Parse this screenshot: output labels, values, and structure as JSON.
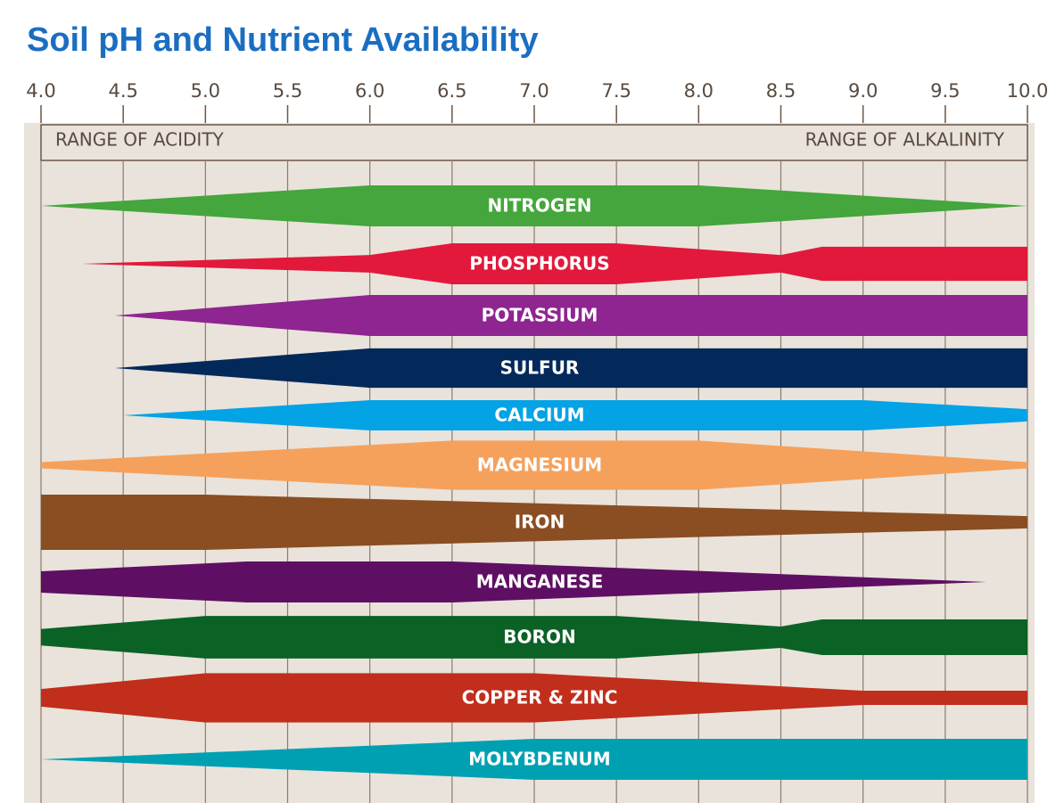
{
  "chart_data": {
    "type": "band",
    "title": "Soil pH and Nutrient Availability",
    "acid_label": "RANGE OF ACIDITY",
    "alkaline_label": "RANGE OF ALKALINITY",
    "xlim": [
      4,
      10
    ],
    "xticks": [
      {
        "value": 4,
        "label": "4.0"
      },
      {
        "value": 4.5,
        "label": "4.5"
      },
      {
        "value": 5,
        "label": "5.0"
      },
      {
        "value": 5.5,
        "label": "5.5"
      },
      {
        "value": 6,
        "label": "6.0"
      },
      {
        "value": 6.5,
        "label": "6.5"
      },
      {
        "value": 7,
        "label": "7.0"
      },
      {
        "value": 7.5,
        "label": "7.5"
      },
      {
        "value": 8,
        "label": "8.0"
      },
      {
        "value": 8.5,
        "label": "8.5"
      },
      {
        "value": 9,
        "label": "9.0"
      },
      {
        "value": 9.5,
        "label": "9.5"
      },
      {
        "value": 10,
        "label": "10.0"
      }
    ],
    "grid": true,
    "series": [
      {
        "name": "NITROGEN",
        "color": "#44a63c",
        "x": [
          4,
          6,
          8,
          10
        ],
        "values": [
          0,
          1,
          1,
          0
        ]
      },
      {
        "name": "PHOSPHORUS",
        "color": "#e2193b",
        "x": [
          4.25,
          6,
          6.5,
          7.5,
          8.5,
          8.75,
          10
        ],
        "values": [
          0,
          0.43,
          1,
          1,
          0.43,
          0.83,
          0.83
        ]
      },
      {
        "name": "POTASSIUM",
        "color": "#8e2590",
        "x": [
          4.45,
          6,
          10
        ],
        "values": [
          0,
          1,
          1
        ]
      },
      {
        "name": "SULFUR",
        "color": "#03295a",
        "x": [
          4.45,
          6,
          10
        ],
        "values": [
          0,
          0.96,
          0.96
        ]
      },
      {
        "name": "CALCIUM",
        "color": "#03a3e6",
        "x": [
          4.5,
          6,
          9,
          10
        ],
        "values": [
          0,
          0.74,
          0.74,
          0.3
        ]
      },
      {
        "name": "MAGNESIUM",
        "color": "#f5a15c",
        "x": [
          4,
          6.5,
          8,
          10
        ],
        "values": [
          0.15,
          1.2,
          1.2,
          0.15
        ]
      },
      {
        "name": "IRON",
        "color": "#8a4e22",
        "x": [
          4,
          5,
          10
        ],
        "values": [
          1.35,
          1.35,
          0.3
        ]
      },
      {
        "name": "MANGANESE",
        "color": "#5e0f63",
        "x": [
          4,
          5.25,
          6.5,
          9.75
        ],
        "values": [
          0.52,
          1,
          1,
          0
        ]
      },
      {
        "name": "BORON",
        "color": "#0b6225",
        "x": [
          4,
          5,
          7.5,
          8.5,
          8.75,
          10
        ],
        "values": [
          0.4,
          1.04,
          1.04,
          0.52,
          0.87,
          0.87
        ]
      },
      {
        "name": "COPPER & ZINC",
        "color": "#c12e1c",
        "x": [
          4,
          5,
          7,
          9,
          10
        ],
        "values": [
          0.43,
          1.2,
          1.2,
          0.35,
          0.35
        ]
      },
      {
        "name": "MOLYBDENUM",
        "color": "#00a0b3",
        "x": [
          4,
          7,
          10
        ],
        "values": [
          0,
          1,
          1
        ]
      }
    ]
  }
}
